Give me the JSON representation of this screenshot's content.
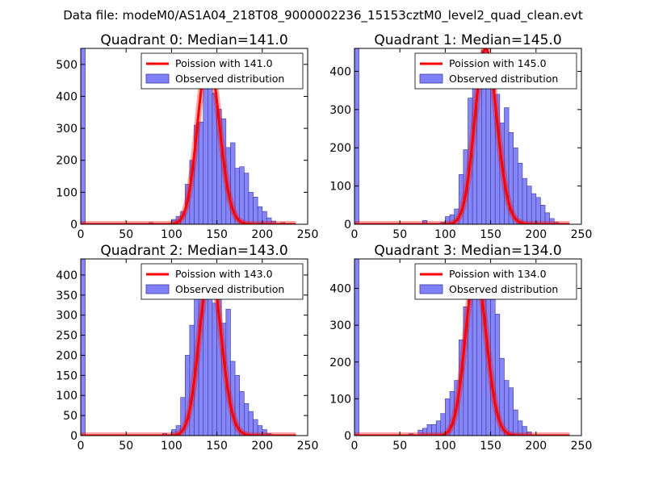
{
  "figure": {
    "suptitle": "Data file: modeM0/AS1A04_218T08_9000002236_15153cztM0_level2_quad_clean.evt"
  },
  "colors": {
    "bar_fill": "#8080f8",
    "bar_edge": "#3a3aa0",
    "poisson_line": "#ff0000",
    "axes": "#000000"
  },
  "chart_data": [
    {
      "type": "bar",
      "title": "Quadrant 0: Median=141.0",
      "median": 141.0,
      "xlim": [
        0,
        250
      ],
      "ylim": [
        0,
        550
      ],
      "xticks": [
        0,
        50,
        100,
        150,
        200,
        250
      ],
      "yticks": [
        0,
        100,
        200,
        300,
        400,
        500
      ],
      "legend": [
        "Poission with 141.0",
        "Observed distribution"
      ],
      "legend_loc": "upper right",
      "bin_width": 5,
      "x": [
        0,
        75,
        95,
        100,
        105,
        110,
        115,
        120,
        125,
        130,
        135,
        140,
        145,
        150,
        155,
        160,
        165,
        170,
        175,
        180,
        185,
        190,
        195,
        200,
        205,
        210,
        215,
        220
      ],
      "values": [
        550,
        5,
        3,
        15,
        25,
        40,
        125,
        200,
        310,
        320,
        480,
        490,
        410,
        360,
        330,
        240,
        255,
        175,
        180,
        160,
        100,
        85,
        55,
        40,
        20,
        10,
        3,
        5
      ],
      "poisson_mean": 141.0,
      "poisson_peak": 525
    },
    {
      "type": "bar",
      "title": "Quadrant 1: Median=145.0",
      "median": 145.0,
      "xlim": [
        0,
        250
      ],
      "ylim": [
        0,
        460
      ],
      "xticks": [
        0,
        50,
        100,
        150,
        200,
        250
      ],
      "yticks": [
        0,
        100,
        200,
        300,
        400
      ],
      "legend": [
        "Poission with 145.0",
        "Observed distribution"
      ],
      "legend_loc": "upper right",
      "bin_width": 5,
      "x": [
        0,
        75,
        95,
        100,
        105,
        110,
        115,
        120,
        125,
        130,
        135,
        140,
        145,
        150,
        155,
        160,
        165,
        170,
        175,
        180,
        185,
        190,
        195,
        200,
        205,
        210,
        215,
        220
      ],
      "values": [
        460,
        10,
        5,
        20,
        25,
        40,
        130,
        195,
        330,
        395,
        420,
        455,
        440,
        380,
        340,
        265,
        305,
        240,
        200,
        160,
        120,
        100,
        80,
        70,
        50,
        30,
        15,
        5
      ],
      "poisson_mean": 145.0,
      "poisson_peak": 460
    },
    {
      "type": "bar",
      "title": "Quadrant 2: Median=143.0",
      "median": 143.0,
      "xlim": [
        0,
        250
      ],
      "ylim": [
        0,
        440
      ],
      "xticks": [
        0,
        50,
        100,
        150,
        200,
        250
      ],
      "yticks": [
        0,
        50,
        100,
        150,
        200,
        250,
        300,
        350,
        400
      ],
      "legend": [
        "Poission with 143.0",
        "Observed distribution"
      ],
      "legend_loc": "upper right",
      "bin_width": 5,
      "x": [
        0,
        90,
        100,
        105,
        110,
        115,
        120,
        125,
        130,
        135,
        140,
        145,
        150,
        155,
        160,
        165,
        170,
        175,
        180,
        185,
        190,
        195,
        200,
        205
      ],
      "values": [
        440,
        5,
        15,
        25,
        95,
        200,
        275,
        345,
        390,
        380,
        360,
        330,
        360,
        280,
        315,
        185,
        150,
        110,
        80,
        60,
        40,
        25,
        15,
        5
      ],
      "poisson_mean": 143.0,
      "poisson_peak": 415
    },
    {
      "type": "bar",
      "title": "Quadrant 3: Median=134.0",
      "median": 134.0,
      "xlim": [
        0,
        250
      ],
      "ylim": [
        0,
        480
      ],
      "xticks": [
        0,
        50,
        100,
        150,
        200,
        250
      ],
      "yticks": [
        0,
        100,
        200,
        300,
        400
      ],
      "legend": [
        "Poission with 134.0",
        "Observed distribution"
      ],
      "legend_loc": "upper right",
      "bin_width": 5,
      "x": [
        0,
        60,
        70,
        75,
        80,
        85,
        90,
        95,
        100,
        105,
        110,
        115,
        120,
        125,
        130,
        135,
        140,
        145,
        150,
        155,
        160,
        165,
        170,
        175,
        180,
        185,
        190
      ],
      "values": [
        480,
        5,
        15,
        20,
        30,
        30,
        40,
        60,
        100,
        120,
        150,
        260,
        350,
        400,
        440,
        440,
        425,
        400,
        370,
        330,
        210,
        150,
        130,
        70,
        40,
        25,
        10
      ],
      "poisson_mean": 134.0,
      "poisson_peak": 445
    }
  ]
}
